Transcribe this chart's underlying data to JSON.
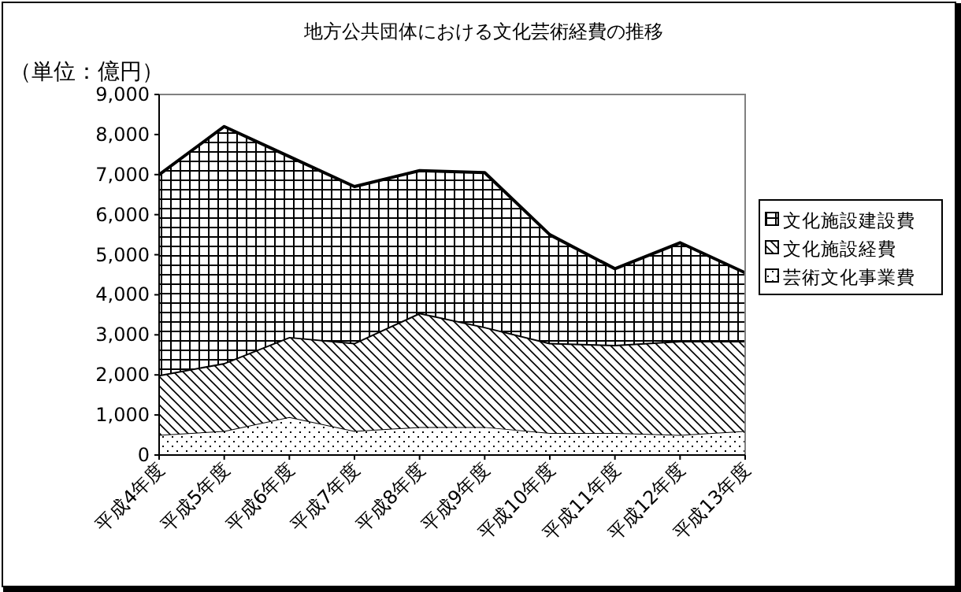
{
  "chart_data": {
    "type": "area",
    "stacked": true,
    "title": "地方公共団体における文化芸術経費の推移",
    "ylabel": "（単位：億円）",
    "categories": [
      "平成4年度",
      "平成5年度",
      "平成6年度",
      "平成7年度",
      "平成8年度",
      "平成9年度",
      "平成10年度",
      "平成11年度",
      "平成12年度",
      "平成13年度"
    ],
    "series": [
      {
        "name": "芸術文化事業費",
        "color": "#000000",
        "values": [
          500,
          600,
          950,
          600,
          700,
          700,
          550,
          550,
          500,
          600
        ]
      },
      {
        "name": "文化施設経費",
        "color": "#000000",
        "values": [
          1500,
          1700,
          2000,
          2200,
          2850,
          2500,
          2250,
          2200,
          2350,
          2250
        ]
      },
      {
        "name": "文化施設建設費",
        "color": "#000000",
        "values": [
          5000,
          5900,
          4500,
          3900,
          3550,
          3850,
          2700,
          1900,
          2450,
          1700
        ]
      }
    ],
    "ylim": [
      0,
      9000
    ],
    "yticks": [
      {
        "value": 0,
        "label": "0"
      },
      {
        "value": 1000,
        "label": "1,000"
      },
      {
        "value": 2000,
        "label": "2,000"
      },
      {
        "value": 3000,
        "label": "3,000"
      },
      {
        "value": 4000,
        "label": "4,000"
      },
      {
        "value": 5000,
        "label": "5,000"
      },
      {
        "value": 6000,
        "label": "6,000"
      },
      {
        "value": 7000,
        "label": "7,000"
      },
      {
        "value": 8000,
        "label": "8,000"
      },
      {
        "value": 9000,
        "label": "9,000"
      }
    ],
    "grid": false,
    "legend": "right"
  }
}
